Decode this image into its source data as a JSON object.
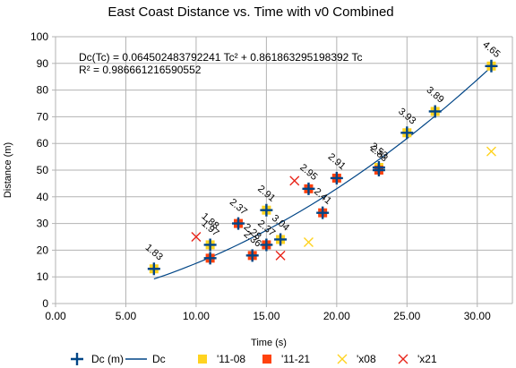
{
  "chart_data": {
    "type": "scatter",
    "title": "East Coast Distance vs. Time with v0 Combined",
    "xlabel": "Time (s)",
    "ylabel": "Distance (m)",
    "xlim": [
      0,
      32.5
    ],
    "ylim": [
      0,
      100
    ],
    "x_ticks": [
      "0.00",
      "5.00",
      "10.00",
      "15.00",
      "20.00",
      "25.00",
      "30.00"
    ],
    "x_tick_values": [
      0,
      5,
      10,
      15,
      20,
      25,
      30
    ],
    "y_ticks": [
      "0",
      "10",
      "20",
      "30",
      "40",
      "50",
      "60",
      "70",
      "80",
      "90",
      "100"
    ],
    "y_tick_values": [
      0,
      10,
      20,
      30,
      40,
      50,
      60,
      70,
      80,
      90,
      100
    ],
    "grid": true,
    "legend_position": "bottom",
    "equation": "Dc(Tc) = 0.064502483792241 Tc² + 0.861863295198392 Tc",
    "r_squared": "R² = 0.986661216590552",
    "series": [
      {
        "name": "Dc (m)",
        "marker": "plus",
        "color": "#004586",
        "points": [
          [
            7,
            13
          ],
          [
            11,
            22
          ],
          [
            11,
            17
          ],
          [
            13,
            30
          ],
          [
            14,
            18
          ],
          [
            15,
            22
          ],
          [
            15,
            35
          ],
          [
            16,
            24
          ],
          [
            18,
            43
          ],
          [
            19,
            34
          ],
          [
            20,
            47
          ],
          [
            23,
            50
          ],
          [
            23,
            51
          ],
          [
            25,
            64
          ],
          [
            27,
            72
          ],
          [
            31,
            89
          ]
        ]
      },
      {
        "name": "'11-08",
        "marker": "square",
        "color": "#ffd320",
        "points": [
          [
            7,
            13
          ],
          [
            11,
            22
          ],
          [
            15,
            35
          ],
          [
            16,
            24
          ],
          [
            23,
            51
          ],
          [
            25,
            64
          ],
          [
            27,
            72
          ],
          [
            31,
            89
          ]
        ]
      },
      {
        "name": "'11-21",
        "marker": "square",
        "color": "#ff420e",
        "points": [
          [
            11,
            17
          ],
          [
            13,
            30
          ],
          [
            14,
            18
          ],
          [
            15,
            22
          ],
          [
            18,
            43
          ],
          [
            19,
            34
          ],
          [
            20,
            47
          ],
          [
            23,
            50
          ]
        ]
      },
      {
        "name": "'x08",
        "marker": "x",
        "color": "#ffd320",
        "points": [
          [
            18,
            23
          ],
          [
            31,
            57
          ]
        ]
      },
      {
        "name": "'x21",
        "marker": "x",
        "color": "#e8261b",
        "points": [
          [
            10,
            25
          ],
          [
            16,
            18
          ],
          [
            17,
            46
          ]
        ]
      }
    ],
    "trendline": {
      "name": "Dc",
      "color": "#004586",
      "a": 0.064502483792241,
      "b": 0.861863295198392,
      "x_range": [
        7,
        31
      ]
    },
    "data_labels": [
      {
        "text": "1.83",
        "x": 7,
        "y": 13
      },
      {
        "text": "1.97",
        "x": 11,
        "y": 22
      },
      {
        "text": "1.88",
        "x": 11,
        "y": 22
      },
      {
        "text": "2.37",
        "x": 13,
        "y": 30
      },
      {
        "text": "2.36",
        "x": 14,
        "y": 18
      },
      {
        "text": "2.28",
        "x": 14,
        "y": 18
      },
      {
        "text": "2.37",
        "x": 15,
        "y": 22
      },
      {
        "text": "2.91",
        "x": 15,
        "y": 35
      },
      {
        "text": "3.04",
        "x": 16,
        "y": 24
      },
      {
        "text": "2.95",
        "x": 18,
        "y": 43
      },
      {
        "text": "2.41",
        "x": 19,
        "y": 34
      },
      {
        "text": "2.91",
        "x": 20,
        "y": 47
      },
      {
        "text": "2.83",
        "x": 23,
        "y": 50
      },
      {
        "text": "2.53",
        "x": 23,
        "y": 51
      },
      {
        "text": "3.93",
        "x": 25,
        "y": 64
      },
      {
        "text": "3.89",
        "x": 27,
        "y": 72
      },
      {
        "text": "4.65",
        "x": 31,
        "y": 89
      }
    ]
  }
}
